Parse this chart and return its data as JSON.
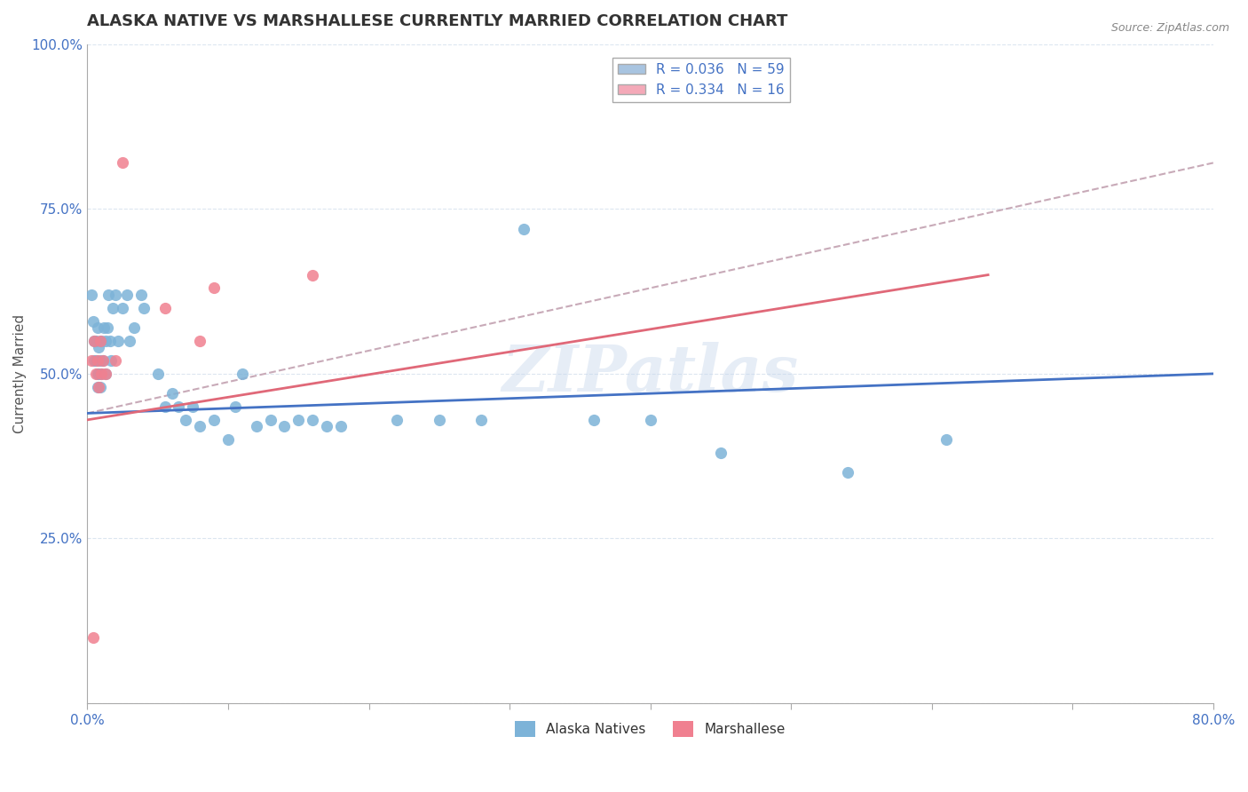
{
  "title": "ALASKA NATIVE VS MARSHALLESE CURRENTLY MARRIED CORRELATION CHART",
  "source_text": "Source: ZipAtlas.com",
  "ylabel": "Currently Married",
  "watermark": "ZIPatlas",
  "xmin": 0.0,
  "xmax": 0.8,
  "ymin": 0.0,
  "ymax": 1.0,
  "yticks": [
    0.0,
    0.25,
    0.5,
    0.75,
    1.0
  ],
  "ytick_labels": [
    "",
    "25.0%",
    "50.0%",
    "75.0%",
    "100.0%"
  ],
  "legend_entries": [
    {
      "label": "R = 0.036   N = 59",
      "color": "#a8c4e0"
    },
    {
      "label": "R = 0.334   N = 16",
      "color": "#f4a9b8"
    }
  ],
  "alaska_color": "#7db3d8",
  "marshallese_color": "#f08090",
  "trendline_alaska_color": "#4472c4",
  "trendline_marshallese_color": "#e06878",
  "dashed_line_color": "#c8aab8",
  "background_color": "#ffffff",
  "grid_color": "#dce6f0",
  "alaska_points": [
    [
      0.003,
      0.62
    ],
    [
      0.004,
      0.58
    ],
    [
      0.005,
      0.55
    ],
    [
      0.005,
      0.52
    ],
    [
      0.006,
      0.55
    ],
    [
      0.006,
      0.52
    ],
    [
      0.007,
      0.57
    ],
    [
      0.007,
      0.5
    ],
    [
      0.007,
      0.48
    ],
    [
      0.008,
      0.54
    ],
    [
      0.008,
      0.5
    ],
    [
      0.009,
      0.52
    ],
    [
      0.009,
      0.48
    ],
    [
      0.01,
      0.55
    ],
    [
      0.01,
      0.5
    ],
    [
      0.011,
      0.52
    ],
    [
      0.012,
      0.57
    ],
    [
      0.013,
      0.55
    ],
    [
      0.013,
      0.5
    ],
    [
      0.014,
      0.57
    ],
    [
      0.015,
      0.62
    ],
    [
      0.016,
      0.55
    ],
    [
      0.017,
      0.52
    ],
    [
      0.018,
      0.6
    ],
    [
      0.02,
      0.62
    ],
    [
      0.022,
      0.55
    ],
    [
      0.025,
      0.6
    ],
    [
      0.028,
      0.62
    ],
    [
      0.03,
      0.55
    ],
    [
      0.033,
      0.57
    ],
    [
      0.038,
      0.62
    ],
    [
      0.04,
      0.6
    ],
    [
      0.05,
      0.5
    ],
    [
      0.055,
      0.45
    ],
    [
      0.06,
      0.47
    ],
    [
      0.065,
      0.45
    ],
    [
      0.07,
      0.43
    ],
    [
      0.075,
      0.45
    ],
    [
      0.08,
      0.42
    ],
    [
      0.09,
      0.43
    ],
    [
      0.1,
      0.4
    ],
    [
      0.105,
      0.45
    ],
    [
      0.11,
      0.5
    ],
    [
      0.12,
      0.42
    ],
    [
      0.13,
      0.43
    ],
    [
      0.14,
      0.42
    ],
    [
      0.15,
      0.43
    ],
    [
      0.16,
      0.43
    ],
    [
      0.17,
      0.42
    ],
    [
      0.18,
      0.42
    ],
    [
      0.22,
      0.43
    ],
    [
      0.25,
      0.43
    ],
    [
      0.28,
      0.43
    ],
    [
      0.31,
      0.72
    ],
    [
      0.36,
      0.43
    ],
    [
      0.4,
      0.43
    ],
    [
      0.45,
      0.38
    ],
    [
      0.54,
      0.35
    ],
    [
      0.61,
      0.4
    ]
  ],
  "marshallese_points": [
    [
      0.003,
      0.52
    ],
    [
      0.005,
      0.55
    ],
    [
      0.006,
      0.5
    ],
    [
      0.007,
      0.52
    ],
    [
      0.008,
      0.48
    ],
    [
      0.009,
      0.55
    ],
    [
      0.01,
      0.5
    ],
    [
      0.011,
      0.52
    ],
    [
      0.013,
      0.5
    ],
    [
      0.02,
      0.52
    ],
    [
      0.055,
      0.6
    ],
    [
      0.08,
      0.55
    ],
    [
      0.09,
      0.63
    ],
    [
      0.16,
      0.65
    ],
    [
      0.004,
      0.1
    ],
    [
      0.025,
      0.82
    ]
  ],
  "alaska_trendline": [
    0.0,
    0.8,
    0.44,
    0.5
  ],
  "marshallese_trendline": [
    0.0,
    0.64,
    0.43,
    0.65
  ],
  "dashed_line": [
    0.0,
    0.8,
    0.44,
    0.82
  ],
  "title_fontsize": 13,
  "axis_label_fontsize": 11,
  "tick_fontsize": 11,
  "legend_fontsize": 11,
  "watermark_fontsize": 52,
  "watermark_color": "#c8d8ec",
  "watermark_alpha": 0.45
}
